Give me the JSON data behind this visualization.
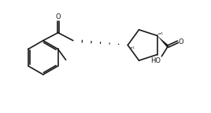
{
  "bg_color": "#ffffff",
  "line_color": "#1a1a1a",
  "lw": 1.2,
  "figsize": [
    2.68,
    1.44
  ],
  "dpi": 100,
  "xlim": [
    0,
    10
  ],
  "ylim": [
    0,
    5.4
  ]
}
